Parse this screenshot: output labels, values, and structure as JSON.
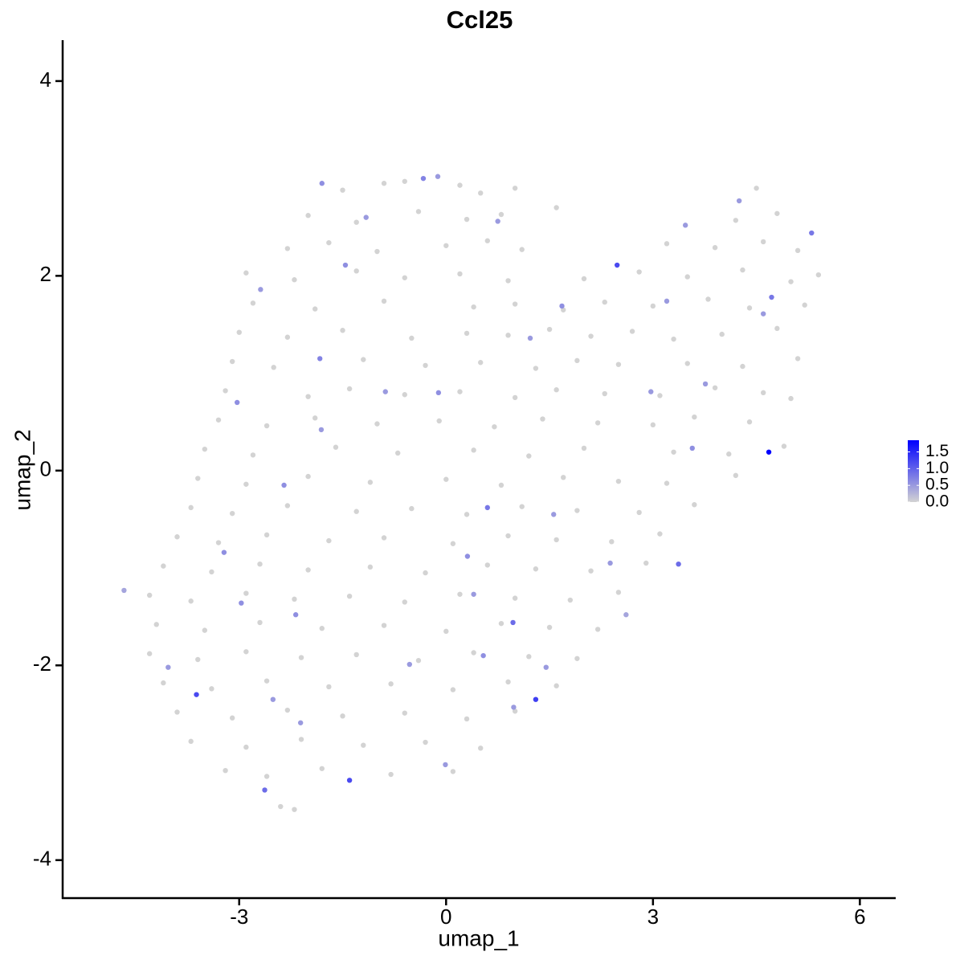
{
  "chart_data": {
    "type": "scatter",
    "title": "Ccl25",
    "x_label": "umap_1",
    "y_label": "umap_2",
    "xlim": [
      -5.56,
      6.52
    ],
    "ylim": [
      -4.39,
      4.42
    ],
    "xticks": [
      -3,
      0,
      3,
      6
    ],
    "yticks": [
      -4,
      -2,
      0,
      2,
      4
    ],
    "color_low": "#d3d3d3",
    "color_high": "#0000ff",
    "colorbar_lim": [
      0,
      1.85
    ],
    "colorbar_ticks": [
      {
        "value": 0,
        "label": "0.0"
      },
      0.5,
      {
        "value": 1,
        "label": "1.0"
      },
      1.5
    ],
    "x": [
      -1.5,
      -0.9,
      -0.6,
      0.2,
      0.5,
      1.0,
      4.5,
      -2.0,
      -1.3,
      -0.4,
      0.3,
      0.8,
      1.6,
      4.2,
      4.8,
      -2.3,
      -1.7,
      -1.0,
      0.0,
      0.6,
      1.1,
      3.2,
      3.9,
      4.6,
      5.1,
      -2.9,
      -2.2,
      -1.3,
      -0.6,
      0.2,
      0.9,
      2.0,
      2.8,
      3.5,
      4.3,
      5.0,
      5.4,
      -2.8,
      -1.9,
      -0.9,
      0.4,
      1.0,
      1.7,
      2.3,
      3.0,
      3.8,
      4.4,
      5.2,
      -3.0,
      -2.3,
      -1.5,
      -0.5,
      0.3,
      0.9,
      1.5,
      2.1,
      2.7,
      3.3,
      4.0,
      4.8,
      -3.1,
      -2.5,
      -1.2,
      -0.3,
      0.5,
      1.3,
      1.9,
      2.5,
      3.5,
      4.3,
      5.1,
      -3.2,
      -2.0,
      -1.4,
      -0.6,
      0.2,
      1.0,
      1.6,
      2.3,
      3.1,
      3.9,
      4.6,
      5.0,
      -3.3,
      -2.6,
      -1.9,
      -1.0,
      -0.1,
      0.7,
      1.4,
      2.2,
      3.0,
      3.6,
      4.4,
      -3.5,
      -2.8,
      -1.6,
      -0.7,
      0.4,
      1.2,
      2.0,
      3.3,
      4.1,
      4.9,
      -3.6,
      -2.9,
      -2.0,
      -1.1,
      0.0,
      0.8,
      1.7,
      2.5,
      3.2,
      4.2,
      -3.7,
      -3.1,
      -2.3,
      -1.3,
      -0.5,
      0.3,
      1.1,
      1.9,
      2.8,
      3.6,
      -3.9,
      -3.3,
      -2.6,
      -1.7,
      -0.9,
      0.1,
      0.9,
      1.6,
      2.4,
      3.1,
      -4.1,
      -3.4,
      -2.7,
      -2.0,
      -1.1,
      -0.3,
      0.6,
      1.3,
      2.1,
      2.9,
      -4.3,
      -3.7,
      -2.9,
      -2.2,
      -1.4,
      -0.6,
      0.2,
      1.0,
      1.8,
      2.5,
      -4.2,
      -3.5,
      -2.7,
      -1.8,
      -0.9,
      0.0,
      0.8,
      1.5,
      2.2,
      -4.3,
      -3.6,
      -2.9,
      -2.1,
      -1.3,
      -0.4,
      0.4,
      1.2,
      1.9,
      -4.1,
      -3.4,
      -2.6,
      -1.7,
      -0.8,
      0.1,
      0.9,
      1.6,
      -3.9,
      -3.1,
      -2.3,
      -1.5,
      -0.6,
      0.3,
      1.0,
      -3.7,
      -2.9,
      -2.1,
      -1.2,
      -0.3,
      0.5,
      -3.2,
      -2.6,
      -1.8,
      -0.8,
      0.1,
      -2.4,
      -2.2,
      4.68,
      2.48,
      1.3,
      -1.4,
      -3.62,
      -2.63,
      3.37,
      0.6,
      0.97,
      -1.83,
      5.3,
      4.72,
      -0.33,
      -1.8,
      -3.03,
      -2.35,
      -3.22,
      -0.11,
      -0.88,
      0.31,
      0.54,
      1.45,
      -0.53,
      -0.01,
      -2.18,
      -4.03,
      -4.67,
      3.57,
      3.76,
      4.6,
      3.47,
      4.25,
      1.68,
      1.22,
      0.75,
      -1.46,
      -2.69,
      -1.81,
      -0.12,
      2.97,
      2.38,
      3.2,
      -1.16,
      -2.97,
      -2.51,
      -2.11,
      0.98,
      0.4,
      1.56,
      2.61
    ],
    "y": [
      2.88,
      2.95,
      2.97,
      2.93,
      2.85,
      2.9,
      2.9,
      2.62,
      2.55,
      2.66,
      2.58,
      2.63,
      2.7,
      2.57,
      2.64,
      2.28,
      2.34,
      2.25,
      2.31,
      2.36,
      2.27,
      2.33,
      2.29,
      2.35,
      2.26,
      2.03,
      1.96,
      2.05,
      1.98,
      2.02,
      1.95,
      1.97,
      2.04,
      1.99,
      2.06,
      1.94,
      2.01,
      1.72,
      1.66,
      1.74,
      1.68,
      1.71,
      1.65,
      1.73,
      1.69,
      1.76,
      1.67,
      1.7,
      1.42,
      1.37,
      1.44,
      1.36,
      1.41,
      1.39,
      1.45,
      1.38,
      1.43,
      1.35,
      1.4,
      1.46,
      1.12,
      1.06,
      1.14,
      1.08,
      1.11,
      1.05,
      1.13,
      1.09,
      1.1,
      1.07,
      1.15,
      0.82,
      0.76,
      0.84,
      0.78,
      0.81,
      0.75,
      0.83,
      0.79,
      0.77,
      0.85,
      0.8,
      0.74,
      0.52,
      0.46,
      0.54,
      0.48,
      0.51,
      0.45,
      0.53,
      0.49,
      0.47,
      0.55,
      0.5,
      0.22,
      0.16,
      0.24,
      0.18,
      0.21,
      0.15,
      0.23,
      0.19,
      0.17,
      0.25,
      -0.08,
      -0.14,
      -0.06,
      -0.12,
      -0.09,
      -0.15,
      -0.07,
      -0.11,
      -0.13,
      -0.05,
      -0.38,
      -0.44,
      -0.36,
      -0.42,
      -0.39,
      -0.45,
      -0.37,
      -0.41,
      -0.43,
      -0.35,
      -0.68,
      -0.74,
      -0.66,
      -0.72,
      -0.69,
      -0.75,
      -0.67,
      -0.71,
      -0.73,
      -0.65,
      -0.98,
      -1.04,
      -0.96,
      -1.02,
      -0.99,
      -1.05,
      -0.97,
      -1.01,
      -1.03,
      -0.95,
      -1.28,
      -1.34,
      -1.26,
      -1.32,
      -1.29,
      -1.35,
      -1.27,
      -1.31,
      -1.33,
      -1.25,
      -1.58,
      -1.64,
      -1.56,
      -1.62,
      -1.59,
      -1.65,
      -1.57,
      -1.61,
      -1.63,
      -1.88,
      -1.94,
      -1.86,
      -1.92,
      -1.89,
      -1.95,
      -1.87,
      -1.91,
      -1.93,
      -2.18,
      -2.24,
      -2.16,
      -2.22,
      -2.19,
      -2.25,
      -2.17,
      -2.21,
      -2.48,
      -2.54,
      -2.46,
      -2.52,
      -2.49,
      -2.55,
      -2.47,
      -2.78,
      -2.84,
      -2.76,
      -2.82,
      -2.79,
      -2.85,
      -3.08,
      -3.14,
      -3.06,
      -3.12,
      -3.09,
      -3.45,
      -3.48,
      0.19,
      2.11,
      -2.35,
      -3.18,
      -2.3,
      -3.28,
      -0.96,
      -0.38,
      -1.56,
      1.15,
      2.44,
      1.78,
      3.0,
      2.95,
      0.7,
      -0.15,
      -0.84,
      0.8,
      0.81,
      -0.88,
      -1.9,
      -2.02,
      -1.99,
      -3.02,
      -1.48,
      -2.02,
      -1.23,
      0.23,
      0.89,
      1.61,
      2.52,
      2.77,
      1.69,
      1.36,
      2.56,
      2.11,
      1.86,
      0.42,
      3.02,
      0.81,
      -0.95,
      1.74,
      2.6,
      -1.36,
      -2.35,
      -2.59,
      -2.43,
      -1.27,
      -0.45,
      -1.48
    ],
    "expression": [
      0,
      0,
      0,
      0,
      0,
      0,
      0,
      0,
      0,
      0,
      0,
      0,
      0,
      0,
      0,
      0,
      0,
      0,
      0,
      0,
      0,
      0,
      0,
      0,
      0,
      0,
      0,
      0,
      0,
      0,
      0,
      0,
      0,
      0,
      0,
      0,
      0,
      0,
      0,
      0,
      0,
      0,
      0,
      0,
      0,
      0,
      0,
      0,
      0,
      0,
      0,
      0,
      0,
      0,
      0,
      0,
      0,
      0,
      0,
      0,
      0,
      0,
      0,
      0,
      0,
      0,
      0,
      0,
      0,
      0,
      0,
      0,
      0,
      0,
      0,
      0,
      0,
      0,
      0,
      0,
      0,
      0,
      0,
      0,
      0,
      0,
      0,
      0,
      0,
      0,
      0,
      0,
      0,
      0,
      0,
      0,
      0,
      0,
      0,
      0,
      0,
      0,
      0,
      0,
      0,
      0,
      0,
      0,
      0,
      0,
      0,
      0,
      0,
      0,
      0,
      0,
      0,
      0,
      0,
      0,
      0,
      0,
      0,
      0,
      0,
      0,
      0,
      0,
      0,
      0,
      0,
      0,
      0,
      0,
      0,
      0,
      0,
      0,
      0,
      0,
      0,
      0,
      0,
      0,
      0,
      0,
      0,
      0,
      0,
      0,
      0,
      0,
      0,
      0,
      0,
      0,
      0,
      0,
      0,
      0,
      0,
      0,
      0,
      0,
      0,
      0,
      0,
      0,
      0,
      0,
      0,
      0,
      0,
      0,
      0,
      0,
      0,
      0,
      0,
      0,
      0,
      0,
      0,
      0,
      0,
      0,
      0,
      0,
      0,
      0,
      0,
      0,
      0,
      0,
      0,
      0,
      0,
      0,
      0,
      0,
      1.85,
      1.2,
      1.3,
      1.2,
      1.2,
      0.9,
      0.9,
      0.8,
      0.9,
      0.7,
      0.8,
      0.8,
      0.7,
      0.6,
      0.6,
      0.6,
      0.6,
      0.6,
      0.5,
      0.6,
      0.6,
      0.5,
      0.5,
      0.5,
      0.6,
      0.5,
      0.4,
      0.6,
      0.5,
      0.5,
      0.5,
      0.5,
      0.6,
      0.5,
      0.5,
      0.6,
      0.5,
      0.5,
      0.5,
      0.5,
      0.5,
      0.5,
      0.5,
      0.6,
      0.5,
      0.5,
      0.5,
      0.5,
      0.5,
      0.4
    ]
  }
}
